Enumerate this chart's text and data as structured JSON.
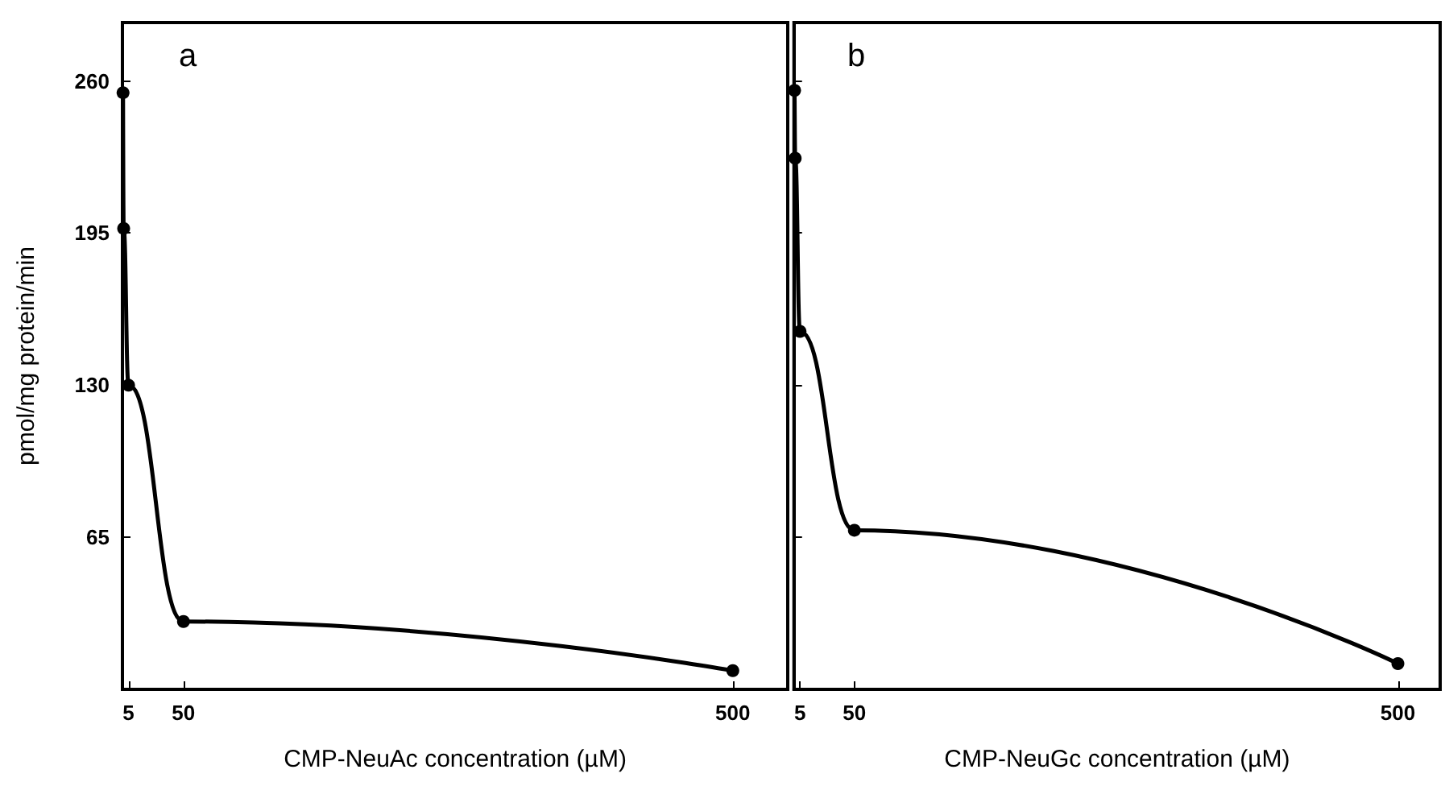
{
  "chart_data": [
    {
      "type": "line",
      "title": "a",
      "xlabel": "CMP-NeuAc concentration (µM)",
      "ylabel": "pmol/mg protein/min",
      "x": [
        0.5,
        1,
        5,
        50,
        500
      ],
      "series": [
        {
          "color": "#000000",
          "values": [
            255,
            197,
            130,
            29,
            8
          ]
        }
      ],
      "xlim": [
        0,
        545
      ],
      "xticks": [
        5,
        50,
        500
      ],
      "ylim": [
        0,
        285
      ],
      "yticks": [
        65,
        130,
        195,
        260
      ],
      "marker": "circle",
      "line_style": "solid"
    },
    {
      "type": "line",
      "title": "b",
      "xlabel": "CMP-NeuGc concentration (µM)",
      "x": [
        0.5,
        1,
        5,
        50,
        500
      ],
      "series": [
        {
          "color": "#000000",
          "values": [
            256,
            227,
            153,
            68,
            11
          ]
        }
      ],
      "xlim": [
        0,
        535
      ],
      "xticks": [
        5,
        50,
        500
      ],
      "ylim": [
        0,
        285
      ],
      "yticks": [
        65,
        130,
        195,
        260
      ],
      "marker": "circle",
      "line_style": "solid",
      "tick_labels": "x"
    }
  ]
}
